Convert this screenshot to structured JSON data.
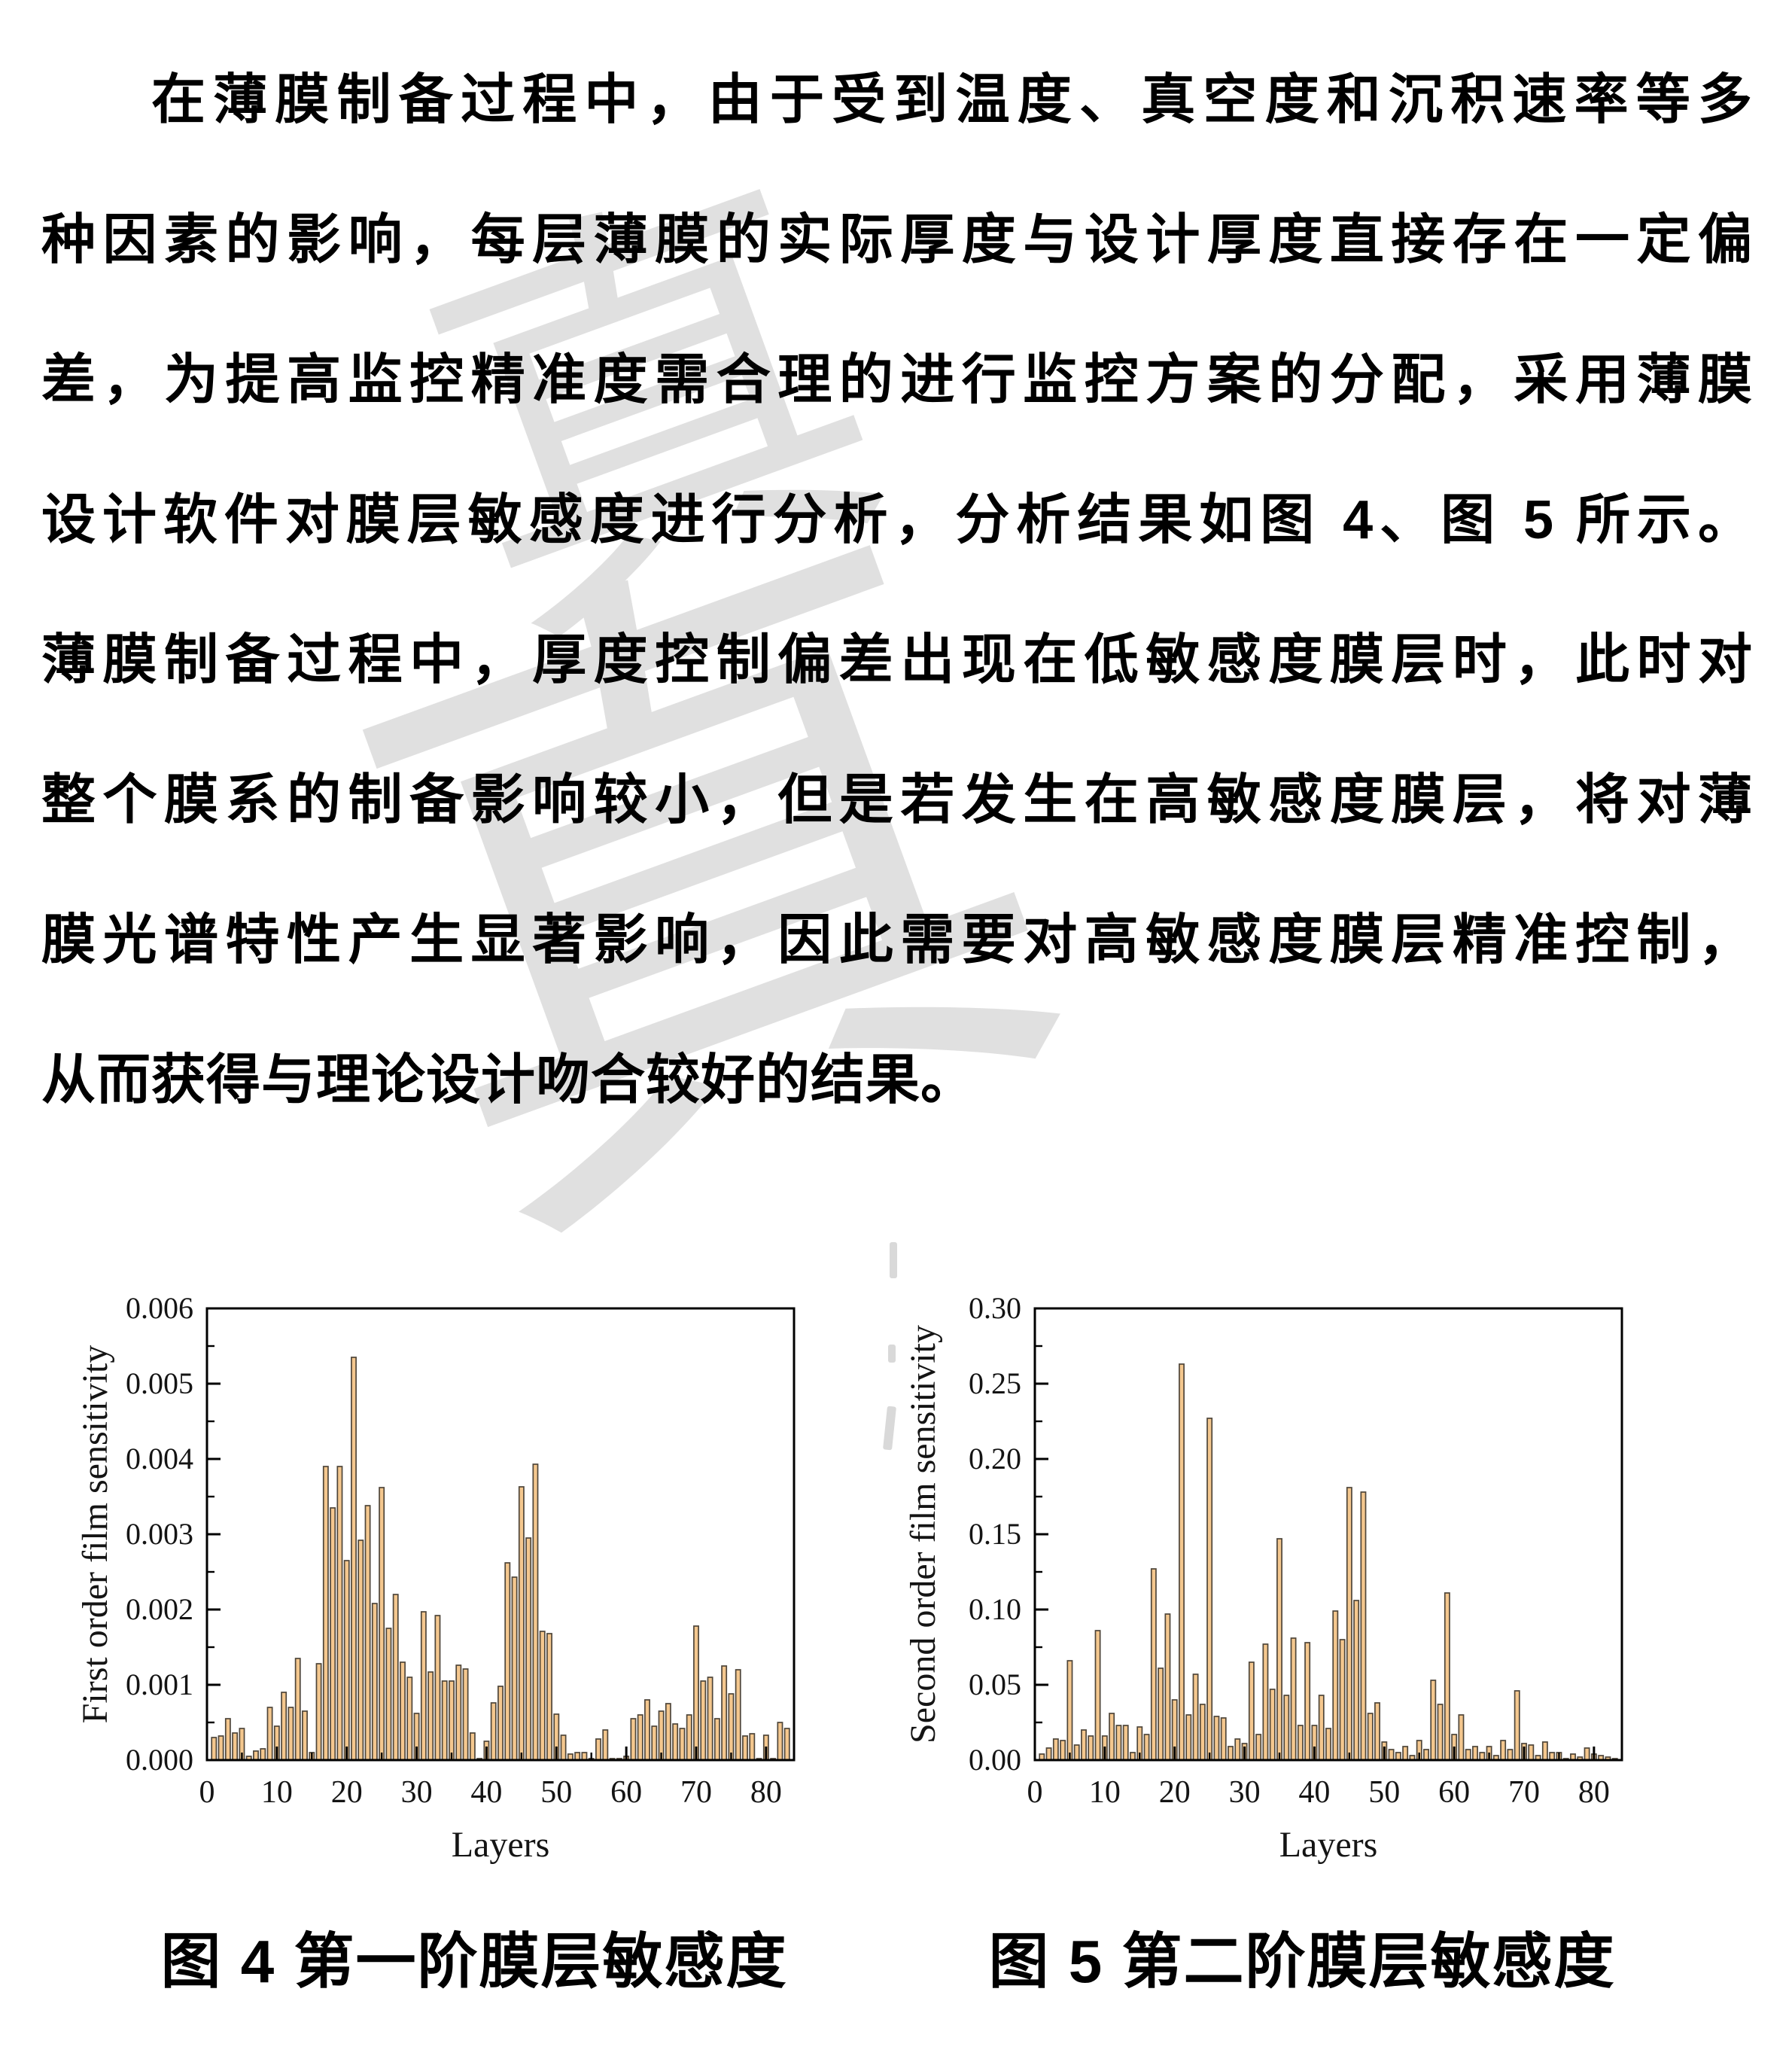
{
  "paragraph": {
    "lines": [
      "在薄膜制备过程中，由于受到温度、真空度和沉积速率等多",
      "种因素的影响，每层薄膜的实际厚度与设计厚度直接存在一定偏",
      "差，为提高监控精准度需合理的进行监控方案的分配，采用薄膜",
      "设计软件对膜层敏感度进行分析，分析结果如图 4、图 5 所示。",
      "薄膜制备过程中，厚度控制偏差出现在低敏感度膜层时，此时对",
      "整个膜系的制备影响较小，但是若发生在高敏感度膜层，将对薄",
      "膜光谱特性产生显著影响，因此需要对高敏感度膜层精准控制，",
      "从而获得与理论设计吻合较好的结果。"
    ]
  },
  "watermark": {
    "chars": [
      "真",
      "真"
    ]
  },
  "figures": [
    {
      "caption": "图 4 第一阶膜层敏感度"
    },
    {
      "caption": "图 5 第二阶膜层敏感度"
    }
  ],
  "chart_data": [
    {
      "type": "bar",
      "title": "",
      "xlabel": "Layers",
      "ylabel": "First order film sensitivity",
      "xlim": [
        0,
        84
      ],
      "ylim": [
        0,
        0.006
      ],
      "x_major_step": 10,
      "x_minor_step": 5,
      "y_major_step": 0.001,
      "y_minor_step": 0.0005,
      "y_tick_decimals": 3,
      "x_start": 1,
      "grid": false,
      "legend": null,
      "bar_color": "#F4C78E",
      "bar_edge": "#4F463A",
      "values": [
        0.0003,
        0.00032,
        0.00055,
        0.00036,
        0.00042,
        5e-05,
        0.00012,
        0.00015,
        0.0007,
        0.00045,
        0.0009,
        0.0007,
        0.00135,
        0.00065,
        0.0001,
        0.00128,
        0.0039,
        0.00335,
        0.0039,
        0.00265,
        0.00535,
        0.00292,
        0.00338,
        0.00208,
        0.00362,
        0.00175,
        0.0022,
        0.0013,
        0.0011,
        0.00062,
        0.00197,
        0.00117,
        0.00192,
        0.00105,
        0.00105,
        0.00126,
        0.00121,
        0.00036,
        2e-05,
        0.00025,
        0.00076,
        0.00098,
        0.00262,
        0.00243,
        0.00363,
        0.00295,
        0.00393,
        0.00171,
        0.00168,
        0.00061,
        0.00033,
        8e-05,
        0.0001,
        0.0001,
        2e-05,
        0.00028,
        0.0004,
        2e-05,
        2e-05,
        5e-05,
        0.00055,
        0.0006,
        0.0008,
        0.00045,
        0.00065,
        0.00075,
        0.00048,
        0.00042,
        0.0006,
        0.00178,
        0.00105,
        0.0011,
        0.00055,
        0.00125,
        0.00088,
        0.0012,
        0.00032,
        0.00035,
        2e-05,
        0.00033,
        2e-05,
        0.0005,
        0.00042
      ]
    },
    {
      "type": "bar",
      "title": "",
      "xlabel": "Layers",
      "ylabel": "Second order film sensitivity",
      "xlim": [
        0,
        84
      ],
      "ylim": [
        0,
        0.3
      ],
      "x_major_step": 10,
      "x_minor_step": 5,
      "y_major_step": 0.05,
      "y_minor_step": 0.025,
      "y_tick_decimals": 2,
      "x_start": 1,
      "grid": false,
      "legend": null,
      "bar_color": "#F4C78E",
      "bar_edge": "#4F463A",
      "values": [
        0.004,
        0.008,
        0.014,
        0.013,
        0.066,
        0.01,
        0.02,
        0.016,
        0.086,
        0.016,
        0.031,
        0.023,
        0.023,
        0.005,
        0.022,
        0.017,
        0.127,
        0.061,
        0.097,
        0.04,
        0.263,
        0.03,
        0.057,
        0.037,
        0.227,
        0.029,
        0.028,
        0.009,
        0.014,
        0.011,
        0.065,
        0.017,
        0.077,
        0.047,
        0.147,
        0.043,
        0.081,
        0.023,
        0.078,
        0.023,
        0.043,
        0.021,
        0.099,
        0.08,
        0.181,
        0.106,
        0.178,
        0.031,
        0.038,
        0.012,
        0.007,
        0.005,
        0.009,
        0.003,
        0.013,
        0.007,
        0.053,
        0.037,
        0.111,
        0.017,
        0.03,
        0.007,
        0.009,
        0.005,
        0.009,
        0.003,
        0.013,
        0.007,
        0.046,
        0.011,
        0.01,
        0.003,
        0.012,
        0.005,
        0.005,
        0.001,
        0.004,
        0.002,
        0.008,
        0.004,
        0.003,
        0.002,
        0.001
      ]
    }
  ]
}
